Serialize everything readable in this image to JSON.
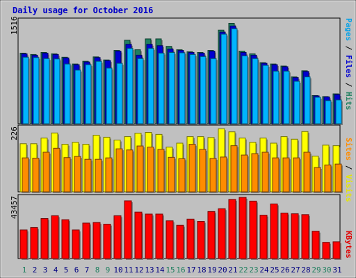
{
  "title": "Daily usage for October 2016",
  "chart_data": {
    "type": "bar",
    "title": "Daily usage for October 2016",
    "categories": [
      "1",
      "2",
      "3",
      "4",
      "5",
      "6",
      "7",
      "8",
      "9",
      "10",
      "11",
      "12",
      "13",
      "14",
      "15",
      "16",
      "17",
      "18",
      "19",
      "20",
      "21",
      "22",
      "23",
      "24",
      "25",
      "26",
      "27",
      "28",
      "29",
      "30",
      "31"
    ],
    "weekend_days": [
      "1",
      "8",
      "9",
      "15",
      "16",
      "22",
      "23",
      "29",
      "30"
    ],
    "panels": [
      {
        "name": "pages-files-hits",
        "ymax_label": "1516",
        "ymax": 1516,
        "right_labels": [
          {
            "text": "Pages",
            "color": "#00a0e8"
          },
          {
            "text": " / ",
            "color": "#000000"
          },
          {
            "text": "Files",
            "color": "#0000d0"
          },
          {
            "text": " / ",
            "color": "#000000"
          },
          {
            "text": "Hits",
            "color": "#208060"
          }
        ],
        "series": [
          {
            "name": "Hits",
            "color": "#208060",
            "values": [
              1040,
              1020,
              1050,
              1030,
              980,
              880,
              920,
              985,
              940,
              1080,
              1230,
              1090,
              1250,
              1250,
              1140,
              1090,
              1060,
              1050,
              1080,
              1380,
              1480,
              1070,
              1030,
              900,
              880,
              850,
              690,
              780,
              415,
              400,
              440
            ]
          },
          {
            "name": "Files",
            "color": "#0000d0",
            "values": [
              1030,
              1010,
              1040,
              1020,
              970,
              870,
              910,
              975,
              930,
              1070,
              1170,
              1010,
              1170,
              1150,
              1100,
              1080,
              1050,
              1040,
              1070,
              1350,
              1440,
              1050,
              1010,
              890,
              870,
              840,
              680,
              770,
              410,
              395,
              430
            ]
          },
          {
            "name": "Pages",
            "color": "#00b4ff",
            "values": [
              980,
              975,
              960,
              955,
              880,
              790,
              870,
              920,
              820,
              890,
              1110,
              960,
              1110,
              1040,
              1050,
              1045,
              1020,
              990,
              960,
              1320,
              1400,
              1000,
              960,
              860,
              775,
              775,
              625,
              690,
              390,
              340,
              350
            ]
          }
        ]
      },
      {
        "name": "sites-visits",
        "ymax_label": "226",
        "ymax": 226,
        "right_labels": [
          {
            "text": "Sites",
            "color": "#ff8c00"
          },
          {
            "text": " / ",
            "color": "#000000"
          },
          {
            "text": "Visits",
            "color": "#e6e600"
          }
        ],
        "series": [
          {
            "name": "Visits",
            "color": "#ffff00",
            "values": [
              170,
              170,
              190,
              208,
              168,
              175,
              168,
              200,
              193,
              183,
              195,
              207,
              210,
              203,
              158,
              172,
              195,
              195,
              192,
              223,
              212,
              190,
              175,
              190,
              172,
              195,
              186,
              213,
              126,
              165,
              163
            ]
          },
          {
            "name": "Sites",
            "color": "#ff8c00",
            "values": [
              120,
              119,
              140,
              154,
              121,
              125,
              115,
              115,
              120,
              152,
              148,
              162,
              158,
              150,
              122,
              117,
              168,
              150,
              118,
              123,
              163,
              130,
              135,
              140,
              120,
              120,
              120,
              140,
              86,
              95,
              98
            ]
          }
        ]
      },
      {
        "name": "kbytes",
        "ymax_label": "43457",
        "ymax": 43457,
        "right_labels": [
          {
            "text": "KBytes",
            "color": "#e00000"
          }
        ],
        "series": [
          {
            "name": "KBytes",
            "color": "#ff0000",
            "values": [
              20300,
              22000,
              28400,
              30400,
              27600,
              20300,
              25200,
              25600,
              24400,
              30400,
              41000,
              33000,
              31600,
              31600,
              26800,
              23600,
              28000,
              26400,
              33400,
              35400,
              42000,
              43457,
              40800,
              30800,
              38800,
              32300,
              31800,
              31200,
              19400,
              11500,
              11900
            ]
          }
        ]
      }
    ]
  }
}
